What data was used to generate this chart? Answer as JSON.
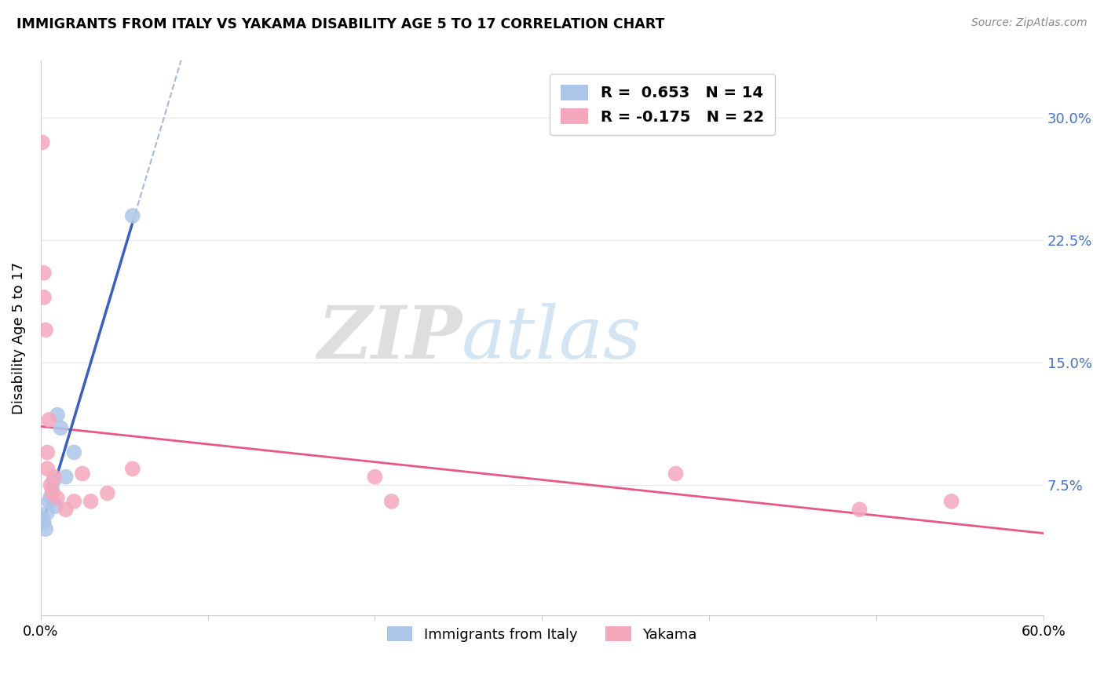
{
  "title": "IMMIGRANTS FROM ITALY VS YAKAMA DISABILITY AGE 5 TO 17 CORRELATION CHART",
  "source": "Source: ZipAtlas.com",
  "ylabel": "Disability Age 5 to 17",
  "xlim": [
    0.0,
    0.6
  ],
  "ylim": [
    -0.005,
    0.335
  ],
  "ytick_vals": [
    0.075,
    0.15,
    0.225,
    0.3
  ],
  "ytick_labels": [
    "7.5%",
    "15.0%",
    "22.5%",
    "30.0%"
  ],
  "xtick_vals": [
    0.0,
    0.1,
    0.2,
    0.3,
    0.4,
    0.5,
    0.6
  ],
  "xtick_labels": [
    "0.0%",
    "",
    "",
    "",
    "",
    "",
    "60.0%"
  ],
  "italy_r": 0.653,
  "italy_n": 14,
  "yakama_r": -0.175,
  "yakama_n": 22,
  "italy_color": "#adc6e8",
  "yakama_color": "#f5a8bc",
  "italy_line_color": "#3a5fbf",
  "yakama_line_color": "#e8568a",
  "italy_x": [
    0.001,
    0.002,
    0.003,
    0.004,
    0.005,
    0.006,
    0.007,
    0.008,
    0.009,
    0.01,
    0.012,
    0.015,
    0.02,
    0.055
  ],
  "italy_y": [
    0.055,
    0.052,
    0.048,
    0.058,
    0.065,
    0.068,
    0.072,
    0.078,
    0.062,
    0.118,
    0.11,
    0.08,
    0.095,
    0.24
  ],
  "yakama_x": [
    0.001,
    0.002,
    0.002,
    0.003,
    0.004,
    0.004,
    0.005,
    0.006,
    0.007,
    0.008,
    0.01,
    0.015,
    0.02,
    0.025,
    0.03,
    0.04,
    0.055,
    0.2,
    0.21,
    0.38,
    0.49,
    0.545
  ],
  "yakama_y": [
    0.285,
    0.205,
    0.19,
    0.17,
    0.095,
    0.085,
    0.115,
    0.075,
    0.07,
    0.08,
    0.067,
    0.06,
    0.065,
    0.082,
    0.065,
    0.07,
    0.085,
    0.08,
    0.065,
    0.082,
    0.06,
    0.065
  ],
  "watermark_zip": "ZIP",
  "watermark_atlas": "atlas",
  "background_color": "#ffffff",
  "grid_color": "#e8e8e8"
}
